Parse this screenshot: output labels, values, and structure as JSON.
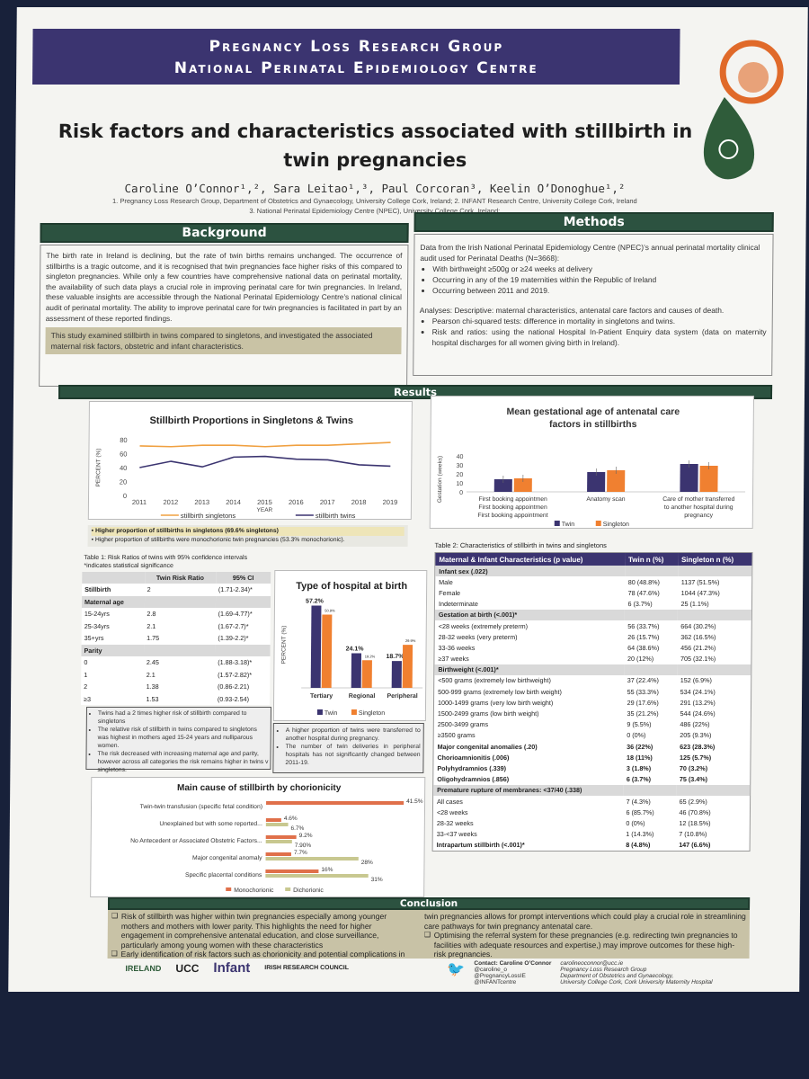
{
  "header": {
    "line1": "Pregnancy Loss Research Group",
    "line2": "National Perinatal Epidemiology Centre"
  },
  "title": "Risk factors and characteristics associated with stillbirth in twin pregnancies",
  "authors": "Caroline O’Connor¹,², Sara Leitao¹,³, Paul Corcoran³, Keelin O’Donoghue¹,²",
  "affiliations": [
    "1. Pregnancy Loss Research Group, Department of Obstetrics and Gynaecology, University College Cork, Ireland; 2. INFANT Research Centre, University College Cork, Ireland",
    "3. National Perinatal Epidemiology Centre (NPEC), University College Cork, Ireland;"
  ],
  "background": {
    "heading": "Background",
    "text": "The birth rate in Ireland is declining, but the rate of twin births remains unchanged. The occurrence of stillbirths is a tragic outcome, and it is recognised that twin pregnancies face higher risks of this compared to singleton pregnancies. While only a few countries have comprehensive national data on perinatal mortality, the availability of such data plays a crucial role in improving perinatal care for twin pregnancies. In Ireland, these valuable insights are accessible through the National Perinatal Epidemiology Centre’s national clinical audit of perinatal mortality. The ability to improve perinatal care for twin pregnancies is facilitated in part by an assessment of these reported findings.",
    "aim": "This study examined stillbirth in twins compared to singletons, and investigated the associated maternal risk factors, obstetric and infant characteristics."
  },
  "methods": {
    "heading": "Methods",
    "intro": "Data from the Irish National Perinatal Epidemiology Centre (NPEC)’s annual perinatal mortality clinical audit used for Perinatal Deaths (N=3668):",
    "bullets": [
      "With birthweight ≥500g or ≥24 weeks at delivery",
      "Occurring in any of the 19 maternities within the Republic of Ireland",
      "Occurring between 2011 and 2019."
    ],
    "analyses": "Analyses: Descriptive: maternal characteristics, antenatal care factors and  causes of death.",
    "bullets2": [
      "Pearson chi-squared tests: difference in mortality in singletons and twins.",
      "Risk and ratios: using the national Hospital In-Patient Enquiry data system (data on maternity hospital discharges for all women giving birth in Ireland)."
    ]
  },
  "results": {
    "heading": "Results"
  },
  "chart_data": [
    {
      "type": "line",
      "title": "Stillbirth Proportions in Singletons & Twins",
      "xlabel": "YEAR",
      "ylabel": "PERCENT (%)",
      "ylim": [
        0,
        80
      ],
      "yticks": [
        "0",
        "20",
        "40",
        "60",
        "80"
      ],
      "x": [
        "2011",
        "2012",
        "2013",
        "2014",
        "2015",
        "2016",
        "2017",
        "2018",
        "2019"
      ],
      "series": [
        {
          "name": "stillbirth singletons",
          "color": "#f0a040",
          "values": [
            71,
            70,
            72,
            72,
            70,
            72,
            72,
            74,
            76
          ]
        },
        {
          "name": "stillbirth twins",
          "color": "#3b3470",
          "values": [
            40,
            49,
            41,
            55,
            56,
            52,
            51,
            44,
            42
          ]
        }
      ]
    },
    {
      "type": "bar",
      "title": "Mean gestational age of antenatal care factors in stillbirths",
      "ylabel": "Gestation (weeks)",
      "ylim": [
        0,
        40
      ],
      "yticks": [
        "0",
        "10",
        "20",
        "30",
        "40"
      ],
      "categories": [
        "First booking appointment",
        "Anatomy scan",
        "Care of mother transferred to another hospital during pregnancy"
      ],
      "series": [
        {
          "name": "Twin",
          "color": "#3b3470",
          "values": [
            14,
            22,
            31
          ]
        },
        {
          "name": "Singleton",
          "color": "#f08030",
          "values": [
            15,
            24,
            29
          ]
        }
      ]
    },
    {
      "type": "bar",
      "title": "Type of hospital at birth",
      "ylabel": "PERCENT (%)",
      "categories": [
        "Tertiary",
        "Regional",
        "Peripheral"
      ],
      "series": [
        {
          "name": "Twin",
          "color": "#3b3470",
          "values": [
            57.2,
            24.1,
            18.7
          ],
          "labels": [
            "57.2%",
            "24.1%",
            "18.7%"
          ]
        },
        {
          "name": "Singleton",
          "color": "#f08030",
          "values": [
            50.9,
            19.2,
            29.9
          ],
          "labels": [
            "50.9%",
            "19.2%",
            "29.9%"
          ]
        }
      ]
    },
    {
      "type": "bar",
      "title": "Main cause of stillbirth by chorionicity",
      "categories": [
        "Twin-twin transfusion (specific fetal condition)",
        "Unexplained but with some reported...",
        "No Antecedent or Associated Obstetric Factors...",
        "Major congenital anomaly",
        "Specific placental conditions"
      ],
      "series": [
        {
          "name": "Monochorionic",
          "color": "#e0704a",
          "values": [
            41.5,
            4.6,
            9.2,
            7.7,
            16
          ],
          "labels": [
            "41.5%",
            "4.6%",
            "9.2%",
            "7.7%",
            "16%"
          ]
        },
        {
          "name": "Dichorionic",
          "color": "#c8c890",
          "values": [
            0,
            6.7,
            7.9,
            28,
            31
          ],
          "labels": [
            "",
            "6.7%",
            "7.90%",
            "28%",
            "31%"
          ]
        }
      ]
    }
  ],
  "findings": {
    "f1": "Higher proportion of stillbirths in singletons (69.6% singletons)",
    "f2": "Higher proportion of stillbirths were monochorionic twin pregnancies (53.3% monochorionic)."
  },
  "table1": {
    "caption": "Table 1: Risk Ratios of twins with 95% confidence intervals",
    "note": "*indicates statistical significance",
    "head": [
      "",
      "Twin Risk Ratio",
      "95% CI"
    ],
    "rows": [
      [
        "Stillbirth",
        "2",
        "(1.71-2.34)*"
      ],
      [
        "Maternal age",
        "",
        ""
      ],
      [
        "15-24yrs",
        "2.8",
        "(1.69-4.77)*"
      ],
      [
        "25-34yrs",
        "2.1",
        "(1.67-2.7)*"
      ],
      [
        "35+yrs",
        "1.75",
        "(1.39-2.2)*"
      ],
      [
        "Parity",
        "",
        ""
      ],
      [
        "0",
        "2.45",
        "(1.88-3.18)*"
      ],
      [
        "1",
        "2.1",
        "(1.57-2.82)*"
      ],
      [
        "2",
        "1.38",
        "(0.86-2.21)"
      ],
      [
        "≥3",
        "1.53",
        "(0.93-2.54)"
      ]
    ]
  },
  "t1notes": [
    "Twins had a 2 times higher risk of stillbirth compared to singletons",
    "The relative risk of stillbirth in twins compared to singletons was highest in mothers aged 15-24 years and nulliparous women.",
    "The risk decreased with increasing maternal age and parity, however across all categories the risk remains higher in twins v singletons."
  ],
  "hospnotes": [
    "A higher proportion of twins were transferred to another hospital during pregnancy.",
    "The number of twin deliveries in peripheral hospitals has not significantly changed between 2011-19."
  ],
  "table2": {
    "caption": "Table 2: Characteristics of stillbirth in twins and singletons",
    "head": [
      "Maternal & Infant Characteristics (p value)",
      "Twin n (%)",
      "Singleton n (%)"
    ],
    "rows": [
      [
        "Infant sex (.022)",
        "",
        ""
      ],
      [
        "Male",
        "80 (48.8%)",
        "1137 (51.5%)"
      ],
      [
        "Female",
        "78 (47.6%)",
        "1044 (47.3%)"
      ],
      [
        "Indeterminate",
        "6 (3.7%)",
        "25 (1.1%)"
      ],
      [
        "Gestation at birth (<.001)*",
        "",
        ""
      ],
      [
        "<28 weeks (extremely preterm)",
        "56 (33.7%)",
        "664 (30.2%)"
      ],
      [
        "28-32 weeks (very preterm)",
        "26 (15.7%)",
        "362 (16.5%)"
      ],
      [
        "33-36 weeks",
        "64 (38.6%)",
        "456 (21.2%)"
      ],
      [
        "≥37 weeks",
        "20 (12%)",
        "705 (32.1%)"
      ],
      [
        "Birthweight (<.001)*",
        "",
        ""
      ],
      [
        "<500 grams (extremely low birthweight)",
        "37 (22.4%)",
        "152 (6.9%)"
      ],
      [
        "500-999 grams (extremely low birth weight)",
        "55 (33.3%)",
        "534 (24.1%)"
      ],
      [
        "1000-1499 grams (very low birth weight)",
        "29 (17.6%)",
        "291 (13.2%)"
      ],
      [
        "1500-2499 grams (low birth weight)",
        "35 (21.2%)",
        "544 (24.6%)"
      ],
      [
        "2500-3499 grams",
        "9 (5.5%)",
        "486 (22%)"
      ],
      [
        "≥3500 grams",
        "0 (0%)",
        "205 (9.3%)"
      ],
      [
        "Major congenital anomalies (.20)",
        "36 (22%)",
        "623 (28.3%)"
      ],
      [
        "Chorioamnionitis (.006)",
        "18 (11%)",
        "125 (5.7%)"
      ],
      [
        "Polyhydramnios (.339)",
        "3 (1.8%)",
        "70 (3.2%)"
      ],
      [
        "Oligohydramnios (.856)",
        "6 (3.7%)",
        "75 (3.4%)"
      ],
      [
        "Premature rupture of membranes: <37/40 (.338)",
        "",
        ""
      ],
      [
        "All cases",
        "7 (4.3%)",
        "65 (2.9%)"
      ],
      [
        "<28 weeks",
        "6  (85.7%)",
        "46 (70.8%)"
      ],
      [
        "28-32 weeks",
        "0 (0%)",
        "12 (18.5%)"
      ],
      [
        "33-<37 weeks",
        "1 (14.3%)",
        "7 (10.8%)"
      ],
      [
        "Intrapartum stillbirth (<.001)*",
        "8 (4.8%)",
        "147 (6.6%)"
      ]
    ]
  },
  "conclusion": {
    "heading": "Conclusion",
    "left": [
      "Risk of stillbirth was higher within twin pregnancies especially among younger mothers and mothers with lower parity. This highlights the need for higher engagement in comprehensive antenatal education, and close surveillance, particularly among  young women with these characteristics",
      "Early identification of risk factors such as chorionicity and potential complications in"
    ],
    "right_cont": "twin pregnancies allows for prompt interventions which could play a crucial role in streamlining care pathways for twin pregnancy antenatal care.",
    "right": [
      "Optimising the referral system for these pregnancies (e.g. redirecting twin pregnancies to facilities with adequate resources and expertise,) may improve outcomes for these high-risk pregnancies."
    ]
  },
  "footer": {
    "logos": [
      "IRELAND",
      "UCC",
      "Infant",
      "IRISH RESEARCH COUNCIL"
    ],
    "contact": "Contact: Caroline O’Connor",
    "email": "carolineoconnor@ucc.ie",
    "handles": [
      "@caroline_o",
      "@PregnancyLossIE",
      "@INFANTcentre"
    ],
    "org": "Pregnancy Loss Research Group",
    "dept": "Department of Obstetrics and Gynaecology,",
    "uni": "University College Cork, Cork University Maternity Hospital"
  }
}
